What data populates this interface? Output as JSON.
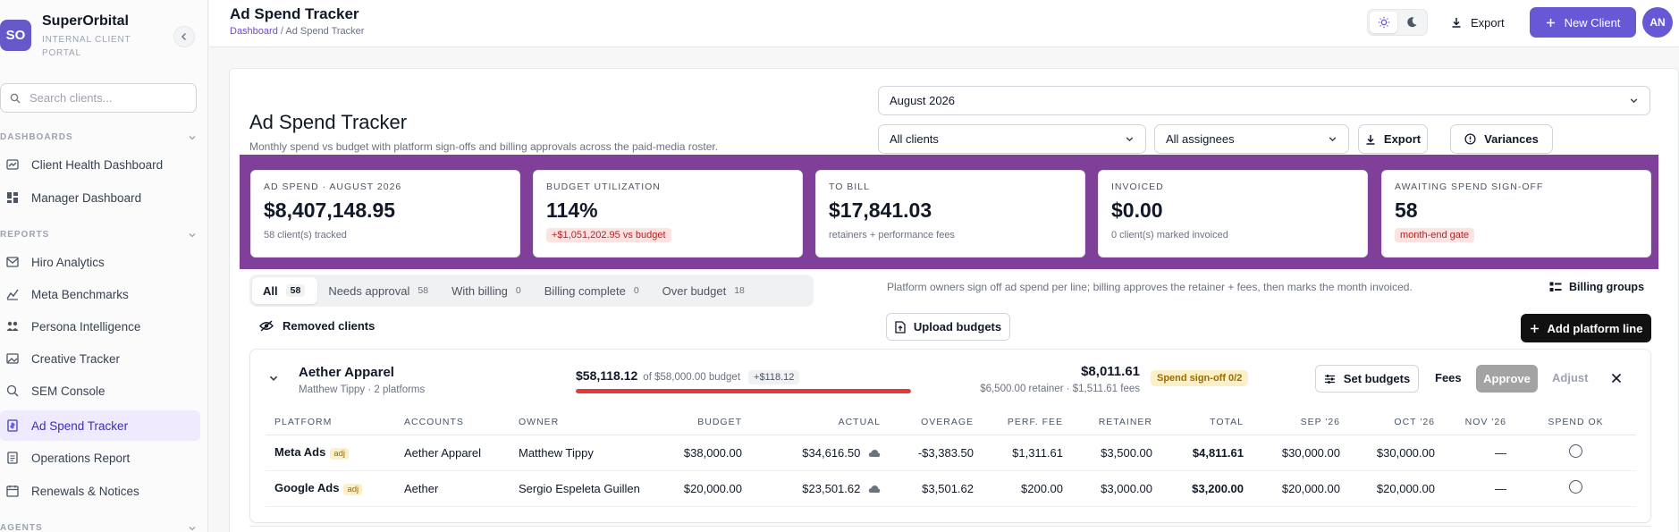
{
  "brand": {
    "initials": "SO",
    "name": "SuperOrbital",
    "subtitle": "INTERNAL CLIENT PORTAL"
  },
  "sidebar": {
    "search_placeholder": "Search clients...",
    "sections": [
      {
        "title": "DASHBOARDS",
        "items": [
          "Client Health Dashboard",
          "Manager Dashboard"
        ]
      },
      {
        "title": "REPORTS",
        "items": [
          "Hiro Analytics",
          "Meta Benchmarks",
          "Persona Intelligence",
          "Creative Tracker",
          "SEM Console",
          "Ad Spend Tracker",
          "Operations Report",
          "Renewals & Notices"
        ]
      },
      {
        "title": "AGENTS",
        "items": []
      }
    ],
    "active_item": "Ad Spend Tracker"
  },
  "header": {
    "title": "Ad Spend Tracker",
    "breadcrumb_root": "Dashboard",
    "breadcrumb_sep": "/",
    "breadcrumb_current": "Ad Spend Tracker",
    "export_label": "Export",
    "new_client_label": "New Client",
    "avatar_initials": "AN"
  },
  "page": {
    "title": "Ad Spend Tracker",
    "subtitle": "Monthly spend vs budget with platform sign-offs and billing approvals across the paid-media roster.",
    "month": "August 2026",
    "client_filter": "All clients",
    "assignee_filter": "All assignees",
    "export_label": "Export",
    "variances_label": "Variances"
  },
  "stats": [
    {
      "label": "AD SPEND · AUGUST 2026",
      "value": "$8,407,148.95",
      "foot": "58 client(s) tracked"
    },
    {
      "label": "BUDGET UTILIZATION",
      "value": "114%",
      "pill": "+$1,051,202.95 vs budget"
    },
    {
      "label": "TO BILL",
      "value": "$17,841.03",
      "foot": "retainers + performance fees"
    },
    {
      "label": "INVOICED",
      "value": "$0.00",
      "foot": "0 client(s) marked invoiced"
    },
    {
      "label": "AWAITING SPEND SIGN-OFF",
      "value": "58",
      "pill": "month-end gate"
    }
  ],
  "tabs": [
    {
      "label": "All",
      "count": "58"
    },
    {
      "label": "Needs approval",
      "count": "58"
    },
    {
      "label": "With billing",
      "count": "0"
    },
    {
      "label": "Billing complete",
      "count": "0"
    },
    {
      "label": "Over budget",
      "count": "18"
    }
  ],
  "hint": "Platform owners sign off ad spend per line; billing approves the retainer + fees, then marks the month invoiced.",
  "billing_groups_label": "Billing groups",
  "removed_clients_label": "Removed clients",
  "upload_budgets_label": "Upload budgets",
  "add_platform_line_label": "Add platform line",
  "client": {
    "name": "Aether Apparel",
    "meta": "Matthew Tippy · 2 platforms",
    "spend": "$58,118.12",
    "budget_text": "of $58,000.00 budget",
    "diff": "+$118.12",
    "spend_fraction": 1.0,
    "bill_total": "$8,011.61",
    "bill_breakdown": "$6,500.00 retainer · $1,511.61 fees",
    "signoff": "Spend sign-off 0/2",
    "set_budgets_label": "Set budgets",
    "fees_label": "Fees",
    "approve_label": "Approve",
    "adjust_label": "Adjust",
    "columns": [
      "PLATFORM",
      "ACCOUNTS",
      "OWNER",
      "BUDGET",
      "ACTUAL",
      "OVERAGE",
      "PERF. FEE",
      "RETAINER",
      "TOTAL",
      "SEP '26",
      "OCT '26",
      "NOV '26",
      "SPEND OK"
    ],
    "rows": [
      {
        "platform": "Meta Ads",
        "tag": "adj",
        "accounts": "Aether Apparel",
        "owner": "Matthew Tippy",
        "budget": "$38,000.00",
        "actual": "$34,616.50",
        "overage": "-$3,383.50",
        "perf_fee": "$1,311.61",
        "retainer": "$3,500.00",
        "total": "$4,811.61",
        "sep": "$30,000.00",
        "oct": "$30,000.00",
        "nov": "—"
      },
      {
        "platform": "Google Ads",
        "tag": "adj",
        "accounts": "Aether",
        "owner": "Sergio Espeleta Guillen",
        "budget": "$20,000.00",
        "actual": "$23,501.62",
        "overage": "$3,501.62",
        "perf_fee": "$200.00",
        "retainer": "$3,000.00",
        "total": "$3,200.00",
        "sep": "$20,000.00",
        "oct": "$20,000.00",
        "nov": "—"
      }
    ]
  },
  "colors": {
    "accent": "#6759d6",
    "highlight_band": "#80409a",
    "over_budget": "#e23a3a"
  }
}
